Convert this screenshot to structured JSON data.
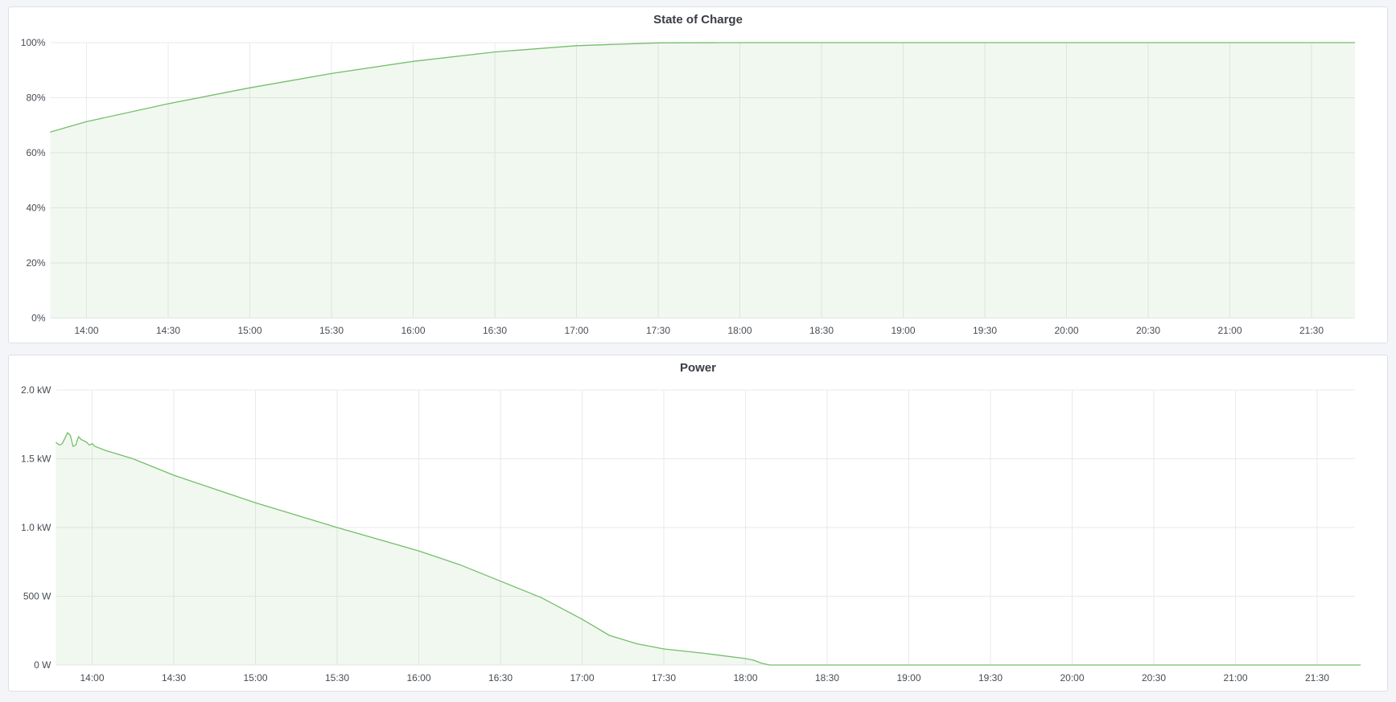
{
  "chart_data": [
    {
      "type": "area",
      "title": "State of Charge",
      "xlabel": "",
      "ylabel": "",
      "ylim": [
        0,
        100
      ],
      "y_ticks": [
        "0%",
        "20%",
        "40%",
        "60%",
        "80%",
        "100%"
      ],
      "x_ticks": [
        "14:00",
        "14:30",
        "15:00",
        "15:30",
        "16:00",
        "16:30",
        "17:00",
        "17:30",
        "18:00",
        "18:30",
        "19:00",
        "19:30",
        "20:00",
        "20:30",
        "21:00",
        "21:30"
      ],
      "xlim": [
        "13:46:40",
        "21:46"
      ],
      "grid": true,
      "color": "#73bf69",
      "x": [
        "13:46:40",
        "14:00",
        "14:30",
        "15:00",
        "15:30",
        "16:00",
        "16:30",
        "17:00",
        "17:30",
        "18:00",
        "21:46"
      ],
      "values": [
        67.5,
        71.3,
        77.8,
        83.6,
        88.8,
        93.2,
        96.6,
        98.9,
        99.9,
        100,
        100
      ]
    },
    {
      "type": "area",
      "title": "Power",
      "xlabel": "",
      "ylabel": "",
      "ylim": [
        0,
        2000
      ],
      "y_ticks": [
        "0 W",
        "500 W",
        "1.0 kW",
        "1.5 kW",
        "2.0 kW"
      ],
      "x_ticks": [
        "14:00",
        "14:30",
        "15:00",
        "15:30",
        "16:00",
        "16:30",
        "17:00",
        "17:30",
        "18:00",
        "18:30",
        "19:00",
        "19:30",
        "20:00",
        "20:30",
        "21:00",
        "21:30"
      ],
      "xlim": [
        "13:46:40",
        "21:46"
      ],
      "grid": true,
      "color": "#73bf69",
      "x": [
        "13:46:40",
        "13:48",
        "13:49",
        "13:50",
        "13:51",
        "13:52",
        "13:53",
        "13:54",
        "13:55",
        "13:56",
        "13:58",
        "13:59",
        "14:00",
        "14:01",
        "14:05",
        "14:15",
        "14:30",
        "15:00",
        "15:30",
        "16:00",
        "16:15",
        "16:30",
        "16:45",
        "17:00",
        "17:10",
        "17:20",
        "17:30",
        "17:45",
        "18:00",
        "18:03",
        "18:06",
        "18:09",
        "21:46"
      ],
      "values": [
        1620,
        1600,
        1610,
        1650,
        1690,
        1670,
        1590,
        1600,
        1660,
        1640,
        1620,
        1600,
        1610,
        1590,
        1560,
        1500,
        1380,
        1180,
        1000,
        830,
        730,
        610,
        490,
        333,
        216,
        155,
        117,
        85,
        47,
        35,
        12,
        0,
        0
      ]
    }
  ]
}
